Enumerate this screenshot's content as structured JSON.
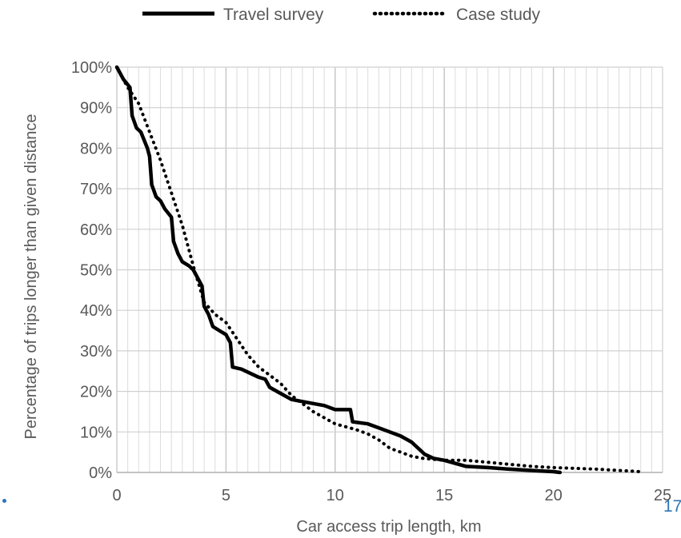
{
  "chart_data": {
    "type": "line",
    "xlabel": "Car access trip length, km",
    "ylabel": "Percentage of trips longer than given distance",
    "xlim": [
      0,
      25
    ],
    "ylim": [
      0,
      100
    ],
    "x_ticks": [
      "0",
      "5",
      "10",
      "15",
      "20",
      "25"
    ],
    "y_ticks": [
      "0%",
      "10%",
      "20%",
      "30%",
      "40%",
      "50%",
      "60%",
      "70%",
      "80%",
      "90%",
      "100%"
    ],
    "grid": "major and minor",
    "legend_position": "top",
    "series": [
      {
        "name": "Travel survey",
        "style": "solid",
        "color": "#000000",
        "points": [
          [
            0,
            100
          ],
          [
            0.3,
            97
          ],
          [
            0.6,
            95
          ],
          [
            0.7,
            88
          ],
          [
            0.9,
            85
          ],
          [
            1.1,
            84
          ],
          [
            1.4,
            80
          ],
          [
            1.5,
            78
          ],
          [
            1.6,
            71
          ],
          [
            1.8,
            68
          ],
          [
            2.0,
            67
          ],
          [
            2.2,
            65
          ],
          [
            2.5,
            63
          ],
          [
            2.6,
            57
          ],
          [
            2.8,
            54
          ],
          [
            3.0,
            52
          ],
          [
            3.3,
            51
          ],
          [
            3.5,
            50
          ],
          [
            3.8,
            47
          ],
          [
            3.9,
            46
          ],
          [
            4.0,
            41
          ],
          [
            4.2,
            39
          ],
          [
            4.4,
            36
          ],
          [
            4.7,
            35
          ],
          [
            5.0,
            34
          ],
          [
            5.2,
            32
          ],
          [
            5.3,
            26
          ],
          [
            5.7,
            25.5
          ],
          [
            6.5,
            23.5
          ],
          [
            6.8,
            23
          ],
          [
            7.0,
            21
          ],
          [
            7.5,
            19.5
          ],
          [
            8.0,
            18
          ],
          [
            8.5,
            17.5
          ],
          [
            9.0,
            17
          ],
          [
            9.5,
            16.5
          ],
          [
            10.0,
            15.5
          ],
          [
            10.7,
            15.5
          ],
          [
            10.8,
            12.5
          ],
          [
            11.5,
            12
          ],
          [
            12.0,
            11
          ],
          [
            12.5,
            10
          ],
          [
            13.0,
            9
          ],
          [
            13.5,
            7.5
          ],
          [
            13.8,
            6
          ],
          [
            14.0,
            5
          ],
          [
            14.1,
            4.5
          ],
          [
            14.5,
            3.5
          ],
          [
            15.0,
            3
          ],
          [
            16.0,
            1.5
          ],
          [
            17.0,
            1.2
          ],
          [
            18.0,
            0.8
          ],
          [
            19.0,
            0.5
          ],
          [
            20.0,
            0.2
          ],
          [
            20.3,
            0
          ]
        ]
      },
      {
        "name": "Case study",
        "style": "dotted",
        "color": "#000000",
        "points": [
          [
            0,
            100
          ],
          [
            0.5,
            95
          ],
          [
            1.0,
            91
          ],
          [
            1.5,
            84
          ],
          [
            2.0,
            77
          ],
          [
            2.5,
            69
          ],
          [
            3.0,
            61
          ],
          [
            3.5,
            51
          ],
          [
            4.0,
            42
          ],
          [
            4.5,
            39
          ],
          [
            5.0,
            37
          ],
          [
            5.5,
            33
          ],
          [
            6.0,
            29
          ],
          [
            6.5,
            26
          ],
          [
            7.0,
            24
          ],
          [
            7.5,
            22
          ],
          [
            8.0,
            19
          ],
          [
            8.5,
            17
          ],
          [
            9.0,
            15
          ],
          [
            9.5,
            13.5
          ],
          [
            10.0,
            12
          ],
          [
            11.0,
            10.5
          ],
          [
            11.5,
            9.5
          ],
          [
            12.0,
            8
          ],
          [
            12.5,
            6
          ],
          [
            13.0,
            5
          ],
          [
            13.5,
            4
          ],
          [
            14.0,
            3.5
          ],
          [
            15.0,
            3
          ],
          [
            16.0,
            3
          ],
          [
            17.0,
            2.5
          ],
          [
            18.0,
            2
          ],
          [
            19.0,
            1.5
          ],
          [
            20.0,
            1.2
          ],
          [
            21.0,
            1
          ],
          [
            22.0,
            0.8
          ],
          [
            23.0,
            0.5
          ],
          [
            24.0,
            0.2
          ]
        ]
      }
    ]
  },
  "slide_number": "17"
}
